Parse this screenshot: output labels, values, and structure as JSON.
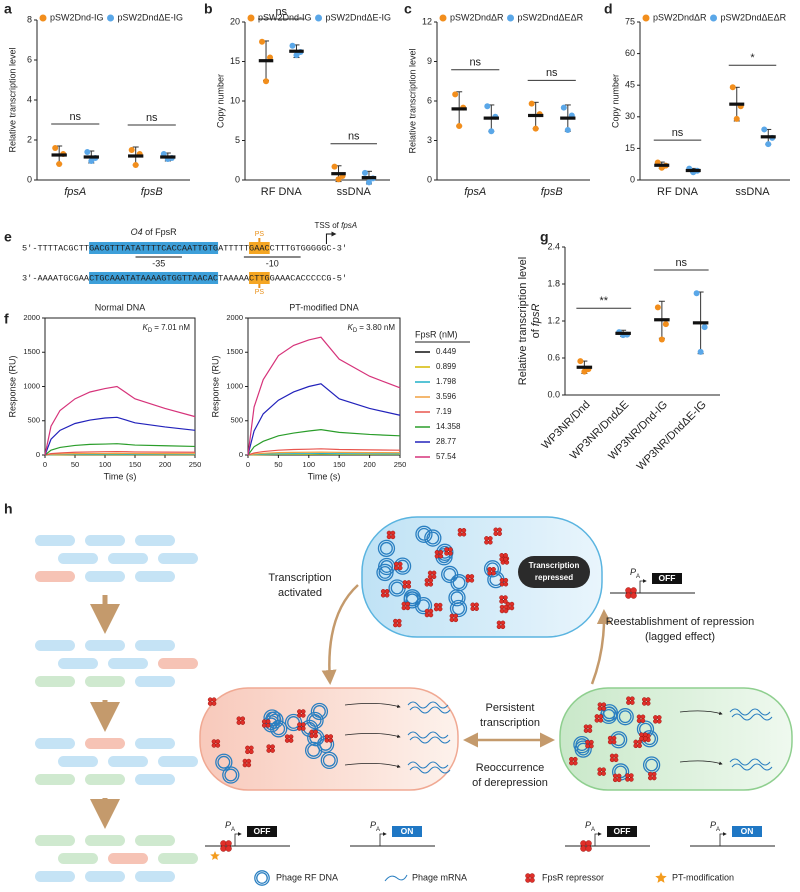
{
  "panels": [
    "a",
    "b",
    "c",
    "d",
    "e",
    "f",
    "g",
    "h"
  ],
  "chart_data": [
    {
      "type": "dot",
      "ylabel": "Relative transcription level",
      "categories": [
        "fpsA",
        "fpsB"
      ],
      "ylim": [
        0,
        8
      ],
      "yticks": [
        0,
        2,
        4,
        6,
        8
      ],
      "series": [
        {
          "name": "pSW2Dnd-IG",
          "color": "#f28e1c",
          "values": [
            1.25,
            1.2
          ],
          "errors": [
            0.45,
            0.45
          ],
          "points": [
            [
              1.6,
              1.3,
              0.8
            ],
            [
              1.5,
              1.3,
              0.75
            ]
          ]
        },
        {
          "name": "pSW2DndΔE-IG",
          "color": "#5aa7e8",
          "values": [
            1.15,
            1.15
          ],
          "errors": [
            0.3,
            0.2
          ],
          "points": [
            [
              1.4,
              1.1,
              0.95
            ],
            [
              1.3,
              1.1,
              1.05
            ]
          ]
        }
      ],
      "significance": [
        "ns",
        "ns"
      ]
    },
    {
      "type": "dot",
      "ylabel": "Copy number",
      "categories": [
        "RF DNA",
        "ssDNA"
      ],
      "ylim": [
        0,
        20
      ],
      "yticks": [
        0,
        5,
        10,
        15,
        20
      ],
      "series": [
        {
          "name": "pSW2Dnd-IG",
          "color": "#f28e1c",
          "values": [
            15.1,
            0.8
          ],
          "errors": [
            2.5,
            1.0
          ],
          "points": [
            [
              17.5,
              15.5,
              12.5
            ],
            [
              1.7,
              0.5,
              0.1
            ]
          ]
        },
        {
          "name": "pSW2DndΔE-IG",
          "color": "#5aa7e8",
          "values": [
            16.3,
            0.3
          ],
          "errors": [
            0.8,
            0.8
          ],
          "points": [
            [
              17,
              16.2,
              15.8
            ],
            [
              0.9,
              0.2,
              -0.3
            ]
          ]
        }
      ],
      "significance": [
        "ns",
        "ns"
      ]
    },
    {
      "type": "dot",
      "ylabel": "Relative transcription level",
      "categories": [
        "fpsA",
        "fpsB"
      ],
      "ylim": [
        0,
        12
      ],
      "yticks": [
        0,
        3,
        6,
        9,
        12
      ],
      "series": [
        {
          "name": "pSW2DndΔR",
          "color": "#f28e1c",
          "values": [
            5.4,
            4.9
          ],
          "errors": [
            1.3,
            1.0
          ],
          "points": [
            [
              6.5,
              5.5,
              4.1
            ],
            [
              5.8,
              5.0,
              3.9
            ]
          ]
        },
        {
          "name": "pSW2DndΔEΔR",
          "color": "#5aa7e8",
          "values": [
            4.7,
            4.7
          ],
          "errors": [
            1.0,
            1.0
          ],
          "points": [
            [
              5.6,
              4.8,
              3.7
            ],
            [
              5.5,
              4.9,
              3.8
            ]
          ]
        }
      ],
      "significance": [
        "ns",
        "ns"
      ]
    },
    {
      "type": "dot",
      "ylabel": "Copy number",
      "categories": [
        "RF DNA",
        "ssDNA"
      ],
      "ylim": [
        0,
        75
      ],
      "yticks": [
        0,
        15,
        30,
        45,
        60,
        75
      ],
      "series": [
        {
          "name": "pSW2DndΔR",
          "color": "#f28e1c",
          "values": [
            7,
            36
          ],
          "errors": [
            1.5,
            8
          ],
          "points": [
            [
              8.3,
              6.8,
              5.8
            ],
            [
              44,
              35,
              29
            ]
          ]
        },
        {
          "name": "pSW2DndΔEΔR",
          "color": "#5aa7e8",
          "values": [
            4.5,
            20.5
          ],
          "errors": [
            1.0,
            3.5
          ],
          "points": [
            [
              5.4,
              4.4,
              3.7
            ],
            [
              24,
              20,
              17
            ]
          ]
        }
      ],
      "significance": [
        "ns",
        "*"
      ]
    },
    {
      "type": "line",
      "title": "Normal DNA",
      "annotation": {
        "symbol": "K",
        "subscript": "D",
        "text": "= 7.01 nM"
      },
      "xlabel": "Time (s)",
      "ylabel": "Response (RU)",
      "x": [
        0,
        10,
        25,
        50,
        75,
        100,
        120,
        150,
        200,
        250
      ],
      "xlim": [
        0,
        250
      ],
      "xticks": [
        0,
        50,
        100,
        150,
        200,
        250
      ],
      "ylim": [
        0,
        2000
      ],
      "yticks": [
        0,
        500,
        1000,
        1500,
        2000
      ],
      "series": [
        {
          "color": "#111111",
          "values": [
            0,
            1,
            2,
            2,
            2,
            3,
            3,
            2,
            2,
            2
          ]
        },
        {
          "color": "#d4b800",
          "values": [
            0,
            3,
            4,
            5,
            5,
            6,
            6,
            5,
            5,
            5
          ]
        },
        {
          "color": "#21b1c9",
          "values": [
            0,
            5,
            8,
            10,
            11,
            12,
            12,
            11,
            10,
            10
          ]
        },
        {
          "color": "#f0a040",
          "values": [
            0,
            10,
            15,
            20,
            22,
            23,
            24,
            22,
            20,
            19
          ]
        },
        {
          "color": "#e8554e",
          "values": [
            0,
            20,
            30,
            40,
            45,
            48,
            50,
            45,
            42,
            40
          ]
        },
        {
          "color": "#2a9d2a",
          "values": [
            0,
            70,
            110,
            140,
            155,
            160,
            165,
            145,
            135,
            125
          ]
        },
        {
          "color": "#2222bb",
          "values": [
            0,
            230,
            360,
            460,
            510,
            540,
            550,
            470,
            410,
            360
          ]
        },
        {
          "color": "#d6337a",
          "values": [
            0,
            420,
            650,
            820,
            920,
            970,
            1000,
            820,
            680,
            560
          ]
        }
      ]
    },
    {
      "type": "line",
      "title": "PT-modified DNA",
      "annotation": {
        "symbol": "K",
        "subscript": "D",
        "text": "= 3.80 nM"
      },
      "xlabel": "Time (s)",
      "ylabel": "Response (RU)",
      "legend_title": "FpsR (nM)",
      "x": [
        0,
        10,
        25,
        50,
        75,
        100,
        120,
        150,
        200,
        250
      ],
      "xlim": [
        0,
        250
      ],
      "xticks": [
        0,
        50,
        100,
        150,
        200,
        250
      ],
      "ylim": [
        0,
        2000
      ],
      "yticks": [
        0,
        500,
        1000,
        1500,
        2000
      ],
      "series": [
        {
          "name": "0.449",
          "color": "#111111",
          "values": [
            0,
            2,
            3,
            4,
            4,
            4,
            5,
            4,
            4,
            4
          ]
        },
        {
          "name": "0.899",
          "color": "#d4b800",
          "values": [
            0,
            4,
            6,
            8,
            9,
            9,
            10,
            9,
            8,
            8
          ]
        },
        {
          "name": "1.798",
          "color": "#21b1c9",
          "values": [
            0,
            8,
            12,
            16,
            18,
            19,
            20,
            18,
            17,
            16
          ]
        },
        {
          "name": "3.596",
          "color": "#f0a040",
          "values": [
            0,
            15,
            25,
            35,
            38,
            40,
            42,
            38,
            35,
            33
          ]
        },
        {
          "name": "7.19",
          "color": "#e8554e",
          "values": [
            0,
            30,
            50,
            70,
            80,
            85,
            90,
            80,
            75,
            70
          ]
        },
        {
          "name": "14.358",
          "color": "#2a9d2a",
          "values": [
            0,
            120,
            200,
            280,
            320,
            350,
            370,
            330,
            300,
            280
          ]
        },
        {
          "name": "28.77",
          "color": "#2222bb",
          "values": [
            0,
            350,
            600,
            800,
            920,
            1000,
            1040,
            820,
            680,
            580
          ]
        },
        {
          "name": "57.54",
          "color": "#d6337a",
          "values": [
            0,
            700,
            1100,
            1450,
            1600,
            1680,
            1720,
            1400,
            1150,
            980
          ]
        }
      ]
    },
    {
      "type": "dot",
      "ylabel": [
        "Relative transcription level",
        "of",
        "fpsR"
      ],
      "categories": [
        "WP3NR/Dnd",
        "WP3NR/DndΔE",
        "WP3NR/Dnd-IG",
        "WP3NR/DndΔE-IG"
      ],
      "ylim": [
        0,
        2.4
      ],
      "yticks": [
        {
          "value": 0,
          "label": "0.0"
        },
        0.6,
        1.2,
        1.8,
        2.4
      ],
      "colors": [
        "#f28e1c",
        "#5aa7e8",
        "#f28e1c",
        "#5aa7e8"
      ],
      "values": [
        0.45,
        1.0,
        1.22,
        1.17
      ],
      "errors": [
        0.1,
        0.05,
        0.3,
        0.5
      ],
      "points": [
        [
          0.55,
          0.42,
          0.38
        ],
        [
          1.02,
          0.98,
          0.97
        ],
        [
          1.42,
          1.15,
          0.9
        ],
        [
          1.65,
          1.1,
          0.7
        ]
      ],
      "significance": [
        "**",
        "ns"
      ]
    }
  ],
  "sequence": {
    "strands": [
      [
        "5′-TTTTACGCTT",
        "GACGTTTATATTTTCACCAATTGTG",
        "ATTTTT",
        "GAAC",
        "CTTTGTGGGGGC-3′"
      ],
      [
        "3′-AAAATGCGAA",
        "CTGCAAATATAAAAGTGGTTAACAC",
        "TAAAAA",
        "CTTG",
        "GAAACACCCCCG-5′"
      ]
    ],
    "operator": [
      "O4",
      " of FpsR"
    ],
    "minus35": "-35",
    "minus10": "-10",
    "ps": "PS",
    "tss": [
      "TSS of ",
      "fpsA"
    ]
  },
  "model": {
    "repressed": [
      "Transcription",
      "repressed"
    ],
    "activated": [
      "Transcription",
      "activated"
    ],
    "persistent": [
      "Persistent",
      "transcription"
    ],
    "reoccurrence": [
      "Reoccurrence",
      "of derepression"
    ],
    "reestablishment": [
      "Reestablishment of repression",
      "(lagged effect)"
    ],
    "promoter": {
      "symbol": "P",
      "subscript": "A"
    },
    "off": "OFF",
    "on": "ON",
    "legend": [
      "Phage RF DNA",
      "Phage mRNA",
      "FpsR repressor",
      "PT-modification"
    ]
  }
}
